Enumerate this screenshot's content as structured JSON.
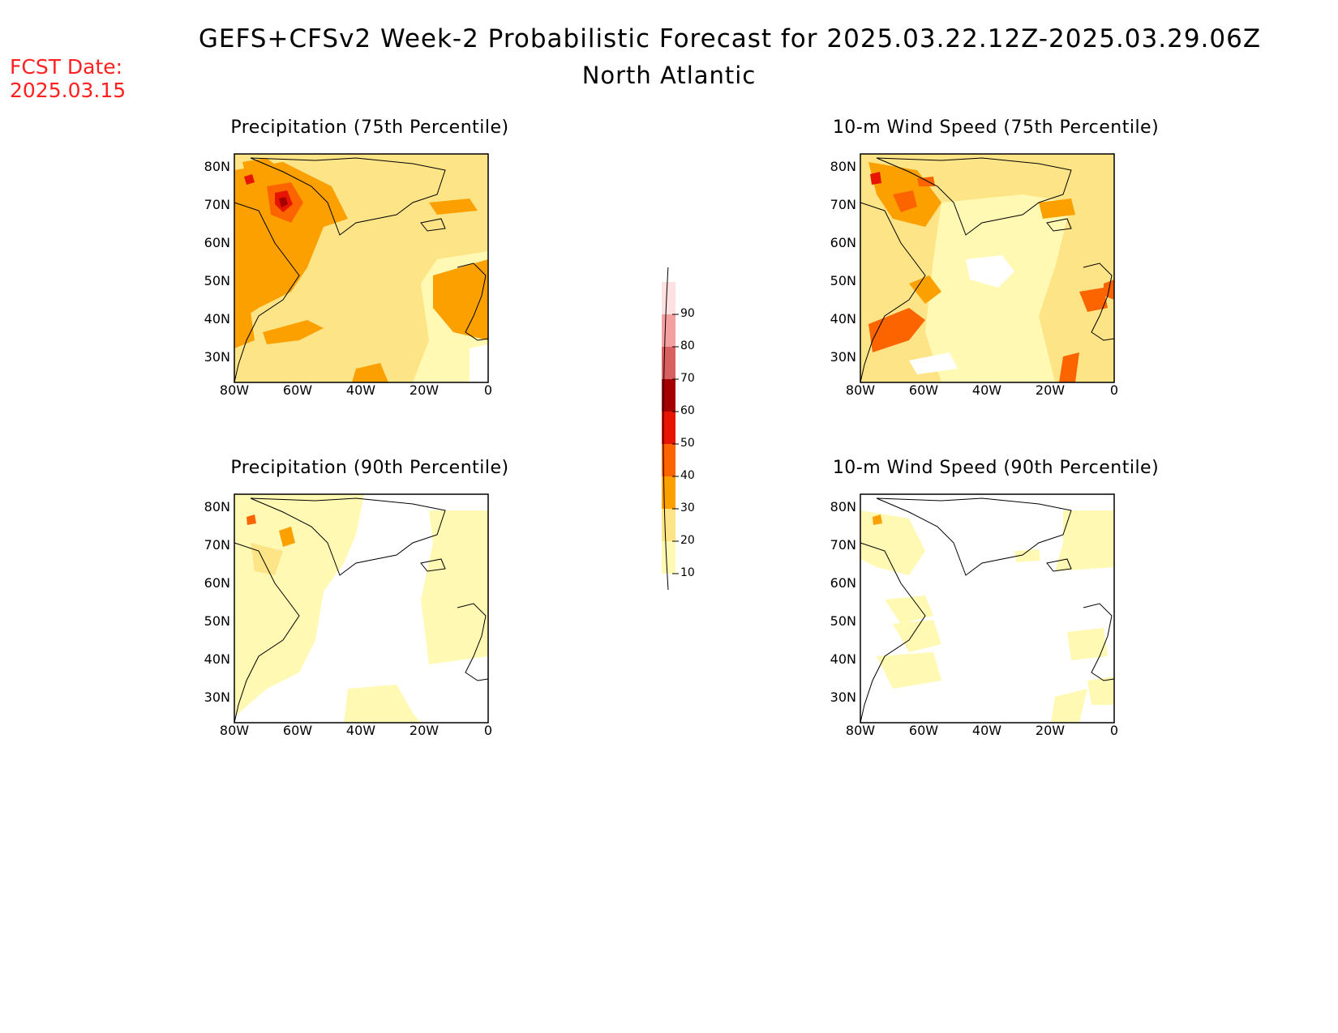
{
  "header": {
    "title": "GEFS+CFSv2 Week-2 Probabilistic Forecast for 2025.03.22.12Z-2025.03.29.06Z",
    "subtitle": "North Atlantic",
    "fcst_date": "FCST Date:\n2025.03.15"
  },
  "axes": {
    "lat_ticks": [
      "80N",
      "70N",
      "60N",
      "50N",
      "40N",
      "30N"
    ],
    "lon_ticks": [
      "80W",
      "60W",
      "40W",
      "20W",
      "0"
    ]
  },
  "panels": [
    {
      "id": "precip75",
      "title": "Precipitation (75th Percentile)"
    },
    {
      "id": "wind75",
      "title": "10-m Wind Speed (75th Percentile)"
    },
    {
      "id": "precip90",
      "title": "Precipitation (90th Percentile)"
    },
    {
      "id": "wind90",
      "title": "10-m Wind Speed (90th Percentile)"
    }
  ],
  "colorbar": {
    "levels": [
      "10",
      "20",
      "30",
      "40",
      "50",
      "60",
      "70",
      "80",
      "90"
    ],
    "colors": [
      "#fff9b3",
      "#fde587",
      "#fca000",
      "#fc6400",
      "#e61400",
      "#a50000",
      "#d86060",
      "#f4a0a0",
      "#fde0e0"
    ]
  }
}
